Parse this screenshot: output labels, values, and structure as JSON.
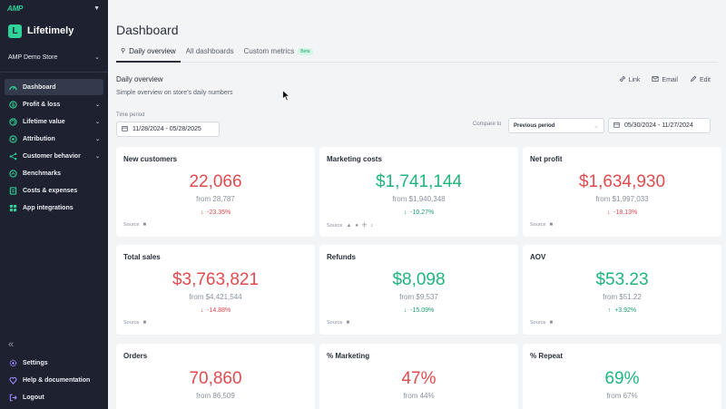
{
  "sidebar": {
    "org_logo": "AMP",
    "brand_name": "Lifetimely",
    "store_name": "AMP Demo Store",
    "nav": [
      {
        "label": "Dashboard"
      },
      {
        "label": "Profit & loss"
      },
      {
        "label": "Lifetime value"
      },
      {
        "label": "Attribution"
      },
      {
        "label": "Customer behavior"
      },
      {
        "label": "Benchmarks"
      },
      {
        "label": "Costs & expenses"
      },
      {
        "label": "App integrations"
      }
    ],
    "bottom": [
      {
        "label": "Settings"
      },
      {
        "label": "Help & documentation"
      },
      {
        "label": "Logout"
      }
    ]
  },
  "page": {
    "title": "Dashboard",
    "tabs": [
      {
        "label": "Daily overview"
      },
      {
        "label": "All dashboards"
      },
      {
        "label": "Custom metrics",
        "badge": "Beta"
      }
    ]
  },
  "overview": {
    "title": "Daily overview",
    "subtitle": "Simple overview on store's daily numbers",
    "actions": {
      "link": "Link",
      "email": "Email",
      "edit": "Edit"
    },
    "time_period_label": "Time period",
    "time_period_value": "11/28/2024 - 05/28/2025",
    "compare_label": "Compare to",
    "compare_value": "Previous period",
    "compare_range": "05/30/2024 - 11/27/2024"
  },
  "source_label": "Source",
  "cards": [
    {
      "title": "New customers",
      "value": "22,066",
      "from": "from 28,787",
      "change": "-23.35%",
      "trend": "down"
    },
    {
      "title": "Marketing costs",
      "value": "$1,741,144",
      "from": "from $1,940,348",
      "change": "-10.27%",
      "trend": "down"
    },
    {
      "title": "Net profit",
      "value": "$1,634,930",
      "from": "from $1,997,033",
      "change": "-18.13%",
      "trend": "down"
    },
    {
      "title": "Total sales",
      "value": "$3,763,821",
      "from": "from $4,421,544",
      "change": "-14.88%",
      "trend": "down"
    },
    {
      "title": "Refunds",
      "value": "$8,098",
      "from": "from $9,537",
      "change": "-15.09%",
      "trend": "down"
    },
    {
      "title": "AOV",
      "value": "$53.23",
      "from": "from $51.22",
      "change": "+3.92%",
      "trend": "up"
    },
    {
      "title": "Orders",
      "value": "70,860",
      "from": "from 86,509",
      "change": "",
      "trend": "down"
    },
    {
      "title": "% Marketing",
      "value": "47%",
      "from": "from 44%",
      "change": "",
      "trend": "up"
    },
    {
      "title": "% Repeat",
      "value": "69%",
      "from": "from 67%",
      "change": "",
      "trend": "up"
    }
  ],
  "colors": {
    "accent": "#2fd39a",
    "sidebar_bg": "#1e2230",
    "negative": "#e14b4f",
    "positive": "#1fb57b"
  }
}
